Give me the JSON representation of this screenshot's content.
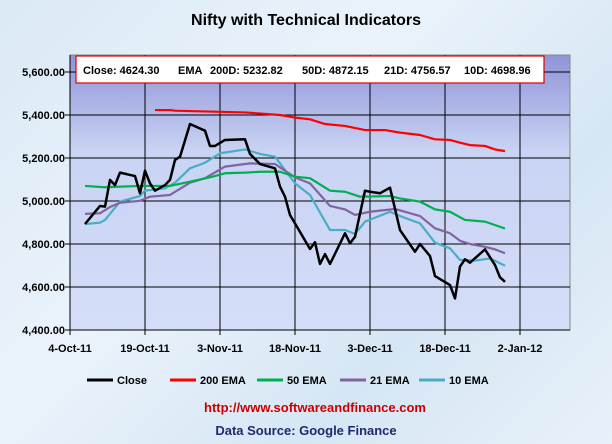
{
  "chart_data": {
    "type": "line",
    "title": "Nifty with Technical Indicators",
    "xlabel": "",
    "ylabel": "",
    "x_unit": "days since 4-Oct-11",
    "xlim": [
      0,
      100
    ],
    "ylim": [
      4400,
      5680
    ],
    "yticks": [
      4400,
      4600,
      4800,
      5000,
      5200,
      5400,
      5600
    ],
    "ytick_labels": [
      "4,400.00",
      "4,600.00",
      "4,800.00",
      "5,000.00",
      "5,200.00",
      "5,400.00",
      "5,600.00"
    ],
    "xticks": [
      0,
      15,
      30,
      45,
      60,
      75,
      90
    ],
    "xtick_labels": [
      "4-Oct-11",
      "19-Oct-11",
      "3-Nov-11",
      "18-Nov-11",
      "3-Dec-11",
      "18-Dec-11",
      "2-Jan-12"
    ],
    "grid": true,
    "legend_position": "bottom",
    "annotation": {
      "close": "Close: 4624.30",
      "ema": "EMA",
      "d200": "200D: 5232.82",
      "d50": "50D: 4872.15",
      "d21": "21D: 4756.57",
      "d10": "10D: 4698.96"
    },
    "series": [
      {
        "name": "Close",
        "color": "#000000",
        "points": [
          [
            3,
            4893
          ],
          [
            6,
            4977
          ],
          [
            7,
            4974
          ],
          [
            8,
            5098
          ],
          [
            9,
            5074
          ],
          [
            10,
            5132
          ],
          [
            13,
            5116
          ],
          [
            14,
            5036
          ],
          [
            15,
            5141
          ],
          [
            16,
            5082
          ],
          [
            17,
            5048
          ],
          [
            19,
            5074
          ],
          [
            20,
            5098
          ],
          [
            21,
            5191
          ],
          [
            22,
            5206
          ],
          [
            24,
            5358
          ],
          [
            27,
            5327
          ],
          [
            28,
            5256
          ],
          [
            29,
            5256
          ],
          [
            31,
            5284
          ],
          [
            35,
            5287
          ],
          [
            36,
            5219
          ],
          [
            38,
            5172
          ],
          [
            41,
            5152
          ],
          [
            42,
            5067
          ],
          [
            43,
            5020
          ],
          [
            44,
            4935
          ],
          [
            45,
            4896
          ],
          [
            48,
            4777
          ],
          [
            49,
            4808
          ],
          [
            50,
            4707
          ],
          [
            51,
            4753
          ],
          [
            52,
            4707
          ],
          [
            55,
            4850
          ],
          [
            56,
            4803
          ],
          [
            57,
            4834
          ],
          [
            59,
            5048
          ],
          [
            60,
            5043
          ],
          [
            62,
            5036
          ],
          [
            64,
            5062
          ],
          [
            66,
            4865
          ],
          [
            69,
            4764
          ],
          [
            70,
            4800
          ],
          [
            72,
            4744
          ],
          [
            73,
            4651
          ],
          [
            76,
            4609
          ],
          [
            77,
            4547
          ],
          [
            78,
            4695
          ],
          [
            79,
            4729
          ],
          [
            80,
            4713
          ],
          [
            83,
            4775
          ],
          [
            85,
            4702
          ],
          [
            86,
            4645
          ],
          [
            87,
            4624
          ]
        ]
      },
      {
        "name": "200 EMA",
        "color": "#ff0000",
        "points": [
          [
            17,
            5423
          ],
          [
            20,
            5423
          ],
          [
            21,
            5420
          ],
          [
            28,
            5416
          ],
          [
            35,
            5412
          ],
          [
            42,
            5400
          ],
          [
            45,
            5388
          ],
          [
            48,
            5380
          ],
          [
            51,
            5358
          ],
          [
            55,
            5349
          ],
          [
            59,
            5330
          ],
          [
            63,
            5330
          ],
          [
            66,
            5318
          ],
          [
            70,
            5307
          ],
          [
            73,
            5287
          ],
          [
            76,
            5284
          ],
          [
            78,
            5271
          ],
          [
            80,
            5260
          ],
          [
            83,
            5256
          ],
          [
            85,
            5240
          ],
          [
            87,
            5232
          ]
        ]
      },
      {
        "name": "50 EMA",
        "color": "#00b050",
        "points": [
          [
            3,
            5070
          ],
          [
            7,
            5064
          ],
          [
            14,
            5070
          ],
          [
            20,
            5070
          ],
          [
            24,
            5090
          ],
          [
            28,
            5110
          ],
          [
            31,
            5129
          ],
          [
            35,
            5132
          ],
          [
            38,
            5136
          ],
          [
            42,
            5136
          ],
          [
            45,
            5113
          ],
          [
            48,
            5106
          ],
          [
            52,
            5048
          ],
          [
            55,
            5043
          ],
          [
            58,
            5020
          ],
          [
            64,
            5023
          ],
          [
            66,
            5012
          ],
          [
            70,
            4997
          ],
          [
            73,
            4961
          ],
          [
            76,
            4950
          ],
          [
            79,
            4912
          ],
          [
            83,
            4904
          ],
          [
            87,
            4872
          ]
        ]
      },
      {
        "name": "21 EMA",
        "color": "#8064a2",
        "points": [
          [
            3,
            4940
          ],
          [
            6,
            4943
          ],
          [
            8,
            4972
          ],
          [
            10,
            4992
          ],
          [
            14,
            5001
          ],
          [
            16,
            5020
          ],
          [
            20,
            5028
          ],
          [
            24,
            5085
          ],
          [
            27,
            5106
          ],
          [
            31,
            5160
          ],
          [
            36,
            5175
          ],
          [
            41,
            5172
          ],
          [
            45,
            5110
          ],
          [
            48,
            5082
          ],
          [
            52,
            4977
          ],
          [
            55,
            4961
          ],
          [
            57,
            4935
          ],
          [
            60,
            4950
          ],
          [
            65,
            4963
          ],
          [
            70,
            4930
          ],
          [
            73,
            4873
          ],
          [
            76,
            4850
          ],
          [
            78,
            4815
          ],
          [
            80,
            4800
          ],
          [
            83,
            4787
          ],
          [
            85,
            4775
          ],
          [
            87,
            4757
          ]
        ]
      },
      {
        "name": "10 EMA",
        "color": "#4bacc6",
        "points": [
          [
            3,
            4893
          ],
          [
            6,
            4899
          ],
          [
            7,
            4912
          ],
          [
            10,
            4997
          ],
          [
            14,
            5023
          ],
          [
            15,
            5048
          ],
          [
            19,
            5059
          ],
          [
            21,
            5085
          ],
          [
            24,
            5152
          ],
          [
            27,
            5178
          ],
          [
            30,
            5222
          ],
          [
            32,
            5229
          ],
          [
            35,
            5240
          ],
          [
            38,
            5219
          ],
          [
            41,
            5206
          ],
          [
            45,
            5082
          ],
          [
            48,
            5028
          ],
          [
            52,
            4865
          ],
          [
            55,
            4865
          ],
          [
            57,
            4847
          ],
          [
            59,
            4904
          ],
          [
            64,
            4950
          ],
          [
            66,
            4930
          ],
          [
            70,
            4896
          ],
          [
            73,
            4806
          ],
          [
            76,
            4780
          ],
          [
            78,
            4726
          ],
          [
            81,
            4723
          ],
          [
            84,
            4733
          ],
          [
            87,
            4699
          ]
        ]
      }
    ]
  },
  "footer": {
    "url": "http://www.softwareandfinance.com",
    "source": "Data Source: Google Finance"
  }
}
